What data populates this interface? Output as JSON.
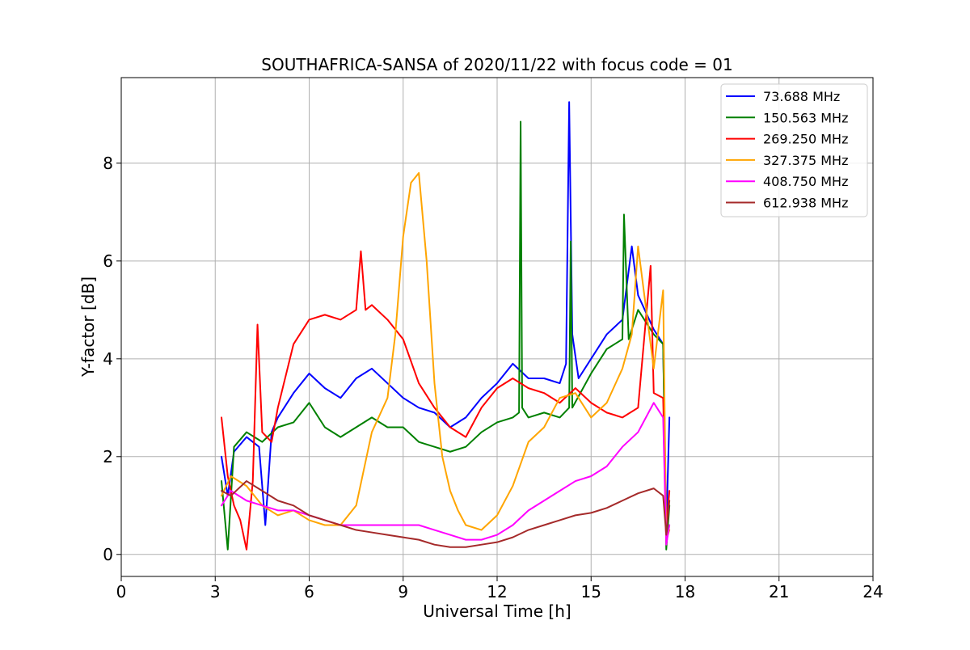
{
  "chart_data": {
    "type": "line",
    "title": "SOUTHAFRICA-SANSA of 2020/11/22 with focus code = 01",
    "xlabel": "Universal Time [h]",
    "ylabel": "Y-factor [dB]",
    "xlim": [
      0,
      24
    ],
    "ylim": [
      -0.45,
      9.75
    ],
    "xticks": [
      0,
      3,
      6,
      9,
      12,
      15,
      18,
      21,
      24
    ],
    "yticks": [
      0,
      2,
      4,
      6,
      8
    ],
    "grid": true,
    "legend_position": "top-right",
    "series": [
      {
        "name": "73.688 MHz",
        "legend_label": "  73.688 MHz",
        "color": "#0000ff",
        "x": [
          3.2,
          3.4,
          3.6,
          4.0,
          4.4,
          4.6,
          4.8,
          5.0,
          5.5,
          6.0,
          6.5,
          7.0,
          7.5,
          8.0,
          8.5,
          9.0,
          9.5,
          10.0,
          10.5,
          11.0,
          11.5,
          12.0,
          12.5,
          13.0,
          13.5,
          14.0,
          14.2,
          14.3,
          14.4,
          14.6,
          15.0,
          15.5,
          16.0,
          16.3,
          16.5,
          17.0,
          17.3,
          17.4,
          17.5
        ],
        "y": [
          2.0,
          1.2,
          2.1,
          2.4,
          2.2,
          0.6,
          2.5,
          2.8,
          3.3,
          3.7,
          3.4,
          3.2,
          3.6,
          3.8,
          3.5,
          3.2,
          3.0,
          2.9,
          2.6,
          2.8,
          3.2,
          3.5,
          3.9,
          3.6,
          3.6,
          3.5,
          3.9,
          9.25,
          4.5,
          3.6,
          4.0,
          4.5,
          4.8,
          6.3,
          5.3,
          4.6,
          4.3,
          0.5,
          2.8
        ]
      },
      {
        "name": "150.563 MHz",
        "legend_label": "  150.563 MHz",
        "color": "#008000",
        "x": [
          3.2,
          3.4,
          3.6,
          4.0,
          4.5,
          5.0,
          5.5,
          6.0,
          6.5,
          7.0,
          7.5,
          8.0,
          8.5,
          9.0,
          9.5,
          10.0,
          10.5,
          11.0,
          11.5,
          12.0,
          12.5,
          12.7,
          12.75,
          12.8,
          13.0,
          13.5,
          14.0,
          14.3,
          14.35,
          14.4,
          15.0,
          15.5,
          16.0,
          16.05,
          16.2,
          16.5,
          17.0,
          17.3,
          17.4,
          17.5
        ],
        "y": [
          1.5,
          0.1,
          2.2,
          2.5,
          2.3,
          2.6,
          2.7,
          3.1,
          2.6,
          2.4,
          2.6,
          2.8,
          2.6,
          2.6,
          2.3,
          2.2,
          2.1,
          2.2,
          2.5,
          2.7,
          2.8,
          2.9,
          8.85,
          3.0,
          2.8,
          2.9,
          2.8,
          3.0,
          6.4,
          3.0,
          3.7,
          4.2,
          4.4,
          6.95,
          4.4,
          5.0,
          4.5,
          4.3,
          0.1,
          1.0
        ]
      },
      {
        "name": "269.250 MHz",
        "legend_label": "  269.250 MHz",
        "color": "#ff0000",
        "x": [
          3.2,
          3.4,
          3.6,
          3.8,
          4.0,
          4.2,
          4.35,
          4.5,
          4.8,
          5.0,
          5.5,
          6.0,
          6.5,
          7.0,
          7.5,
          7.65,
          7.8,
          8.0,
          8.5,
          9.0,
          9.5,
          10.0,
          10.5,
          11.0,
          11.5,
          12.0,
          12.5,
          13.0,
          13.5,
          14.0,
          14.5,
          15.0,
          15.5,
          16.0,
          16.5,
          16.9,
          17.0,
          17.3,
          17.4,
          17.5
        ],
        "y": [
          2.8,
          1.6,
          1.0,
          0.7,
          0.1,
          1.5,
          4.7,
          2.5,
          2.3,
          3.0,
          4.3,
          4.8,
          4.9,
          4.8,
          5.0,
          6.2,
          5.0,
          5.1,
          4.8,
          4.4,
          3.5,
          3.0,
          2.6,
          2.4,
          3.0,
          3.4,
          3.6,
          3.4,
          3.3,
          3.1,
          3.4,
          3.1,
          2.9,
          2.8,
          3.0,
          5.9,
          3.3,
          3.2,
          0.5,
          1.3
        ]
      },
      {
        "name": "327.375 MHz",
        "legend_label": "  327.375 MHz",
        "color": "#ffa500",
        "x": [
          3.2,
          3.5,
          4.0,
          4.5,
          5.0,
          5.5,
          6.0,
          6.5,
          7.0,
          7.5,
          8.0,
          8.5,
          8.75,
          9.0,
          9.25,
          9.5,
          9.75,
          10.0,
          10.25,
          10.5,
          10.75,
          11.0,
          11.5,
          12.0,
          12.5,
          13.0,
          13.5,
          14.0,
          14.5,
          15.0,
          15.5,
          16.0,
          16.3,
          16.5,
          17.0,
          17.3,
          17.4,
          17.5
        ],
        "y": [
          1.2,
          1.6,
          1.4,
          1.0,
          0.8,
          0.9,
          0.7,
          0.6,
          0.6,
          1.0,
          2.5,
          3.2,
          4.5,
          6.5,
          7.6,
          7.8,
          6.0,
          3.5,
          2.0,
          1.3,
          0.9,
          0.6,
          0.5,
          0.8,
          1.4,
          2.3,
          2.6,
          3.2,
          3.3,
          2.8,
          3.1,
          3.8,
          4.5,
          6.3,
          3.8,
          5.4,
          0.3,
          0.5
        ]
      },
      {
        "name": "408.750 MHz",
        "legend_label": "  408.750 MHz",
        "color": "#ff00ff",
        "x": [
          3.2,
          3.5,
          4.0,
          4.5,
          5.0,
          5.5,
          6.0,
          6.5,
          7.0,
          7.5,
          8.0,
          8.5,
          9.0,
          9.5,
          10.0,
          10.5,
          11.0,
          11.5,
          12.0,
          12.5,
          13.0,
          13.5,
          14.0,
          14.5,
          15.0,
          15.5,
          16.0,
          16.5,
          17.0,
          17.3,
          17.4,
          17.5
        ],
        "y": [
          1.0,
          1.3,
          1.1,
          1.0,
          0.9,
          0.9,
          0.8,
          0.7,
          0.6,
          0.6,
          0.6,
          0.6,
          0.6,
          0.6,
          0.5,
          0.4,
          0.3,
          0.3,
          0.4,
          0.6,
          0.9,
          1.1,
          1.3,
          1.5,
          1.6,
          1.8,
          2.2,
          2.5,
          3.1,
          2.8,
          0.2,
          0.6
        ]
      },
      {
        "name": "612.938 MHz",
        "legend_label": "  612.938 MHz",
        "color": "#a52a2a",
        "x": [
          3.2,
          3.5,
          4.0,
          4.5,
          5.0,
          5.5,
          6.0,
          6.5,
          7.0,
          7.5,
          8.0,
          8.5,
          9.0,
          9.5,
          10.0,
          10.5,
          11.0,
          11.5,
          12.0,
          12.5,
          13.0,
          13.5,
          14.0,
          14.5,
          15.0,
          15.5,
          16.0,
          16.5,
          17.0,
          17.3,
          17.4,
          17.5
        ],
        "y": [
          1.3,
          1.2,
          1.5,
          1.3,
          1.1,
          1.0,
          0.8,
          0.7,
          0.6,
          0.5,
          0.45,
          0.4,
          0.35,
          0.3,
          0.2,
          0.15,
          0.15,
          0.2,
          0.25,
          0.35,
          0.5,
          0.6,
          0.7,
          0.8,
          0.85,
          0.95,
          1.1,
          1.25,
          1.35,
          1.2,
          0.4,
          1.1
        ]
      }
    ]
  }
}
